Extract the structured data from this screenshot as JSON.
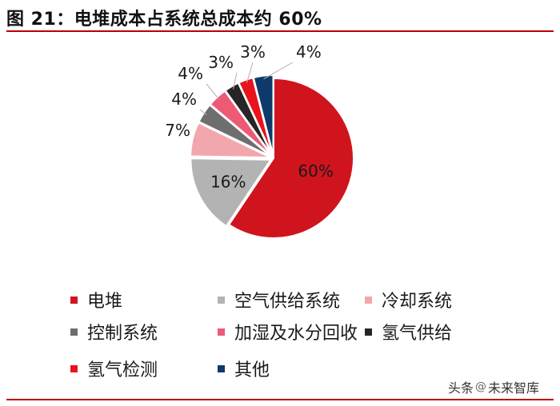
{
  "title": "图 21：电堆成本占系统总成本约 60%",
  "colors": {
    "rule": "#c00000"
  },
  "chart_data": {
    "type": "pie",
    "categories": [
      "电堆",
      "空气供给系统",
      "冷却系统",
      "控制系统",
      "加湿及水分回收",
      "氢气供给",
      "氢气检测",
      "其他"
    ],
    "values": [
      60,
      16,
      7,
      4,
      4,
      3,
      3,
      4
    ],
    "labels": [
      "60%",
      "16%",
      "7%",
      "4%",
      "4%",
      "3%",
      "3%",
      "4%"
    ],
    "colors": [
      "#d0141d",
      "#b3b3b3",
      "#f2a7ae",
      "#6e6e6e",
      "#ec5a76",
      "#262626",
      "#e8131b",
      "#0e3a6b"
    ],
    "start": "12 o'clock, clockwise",
    "legend_position": "bottom"
  },
  "watermark": {
    "prefix": "头条",
    "name": "未来智库"
  }
}
